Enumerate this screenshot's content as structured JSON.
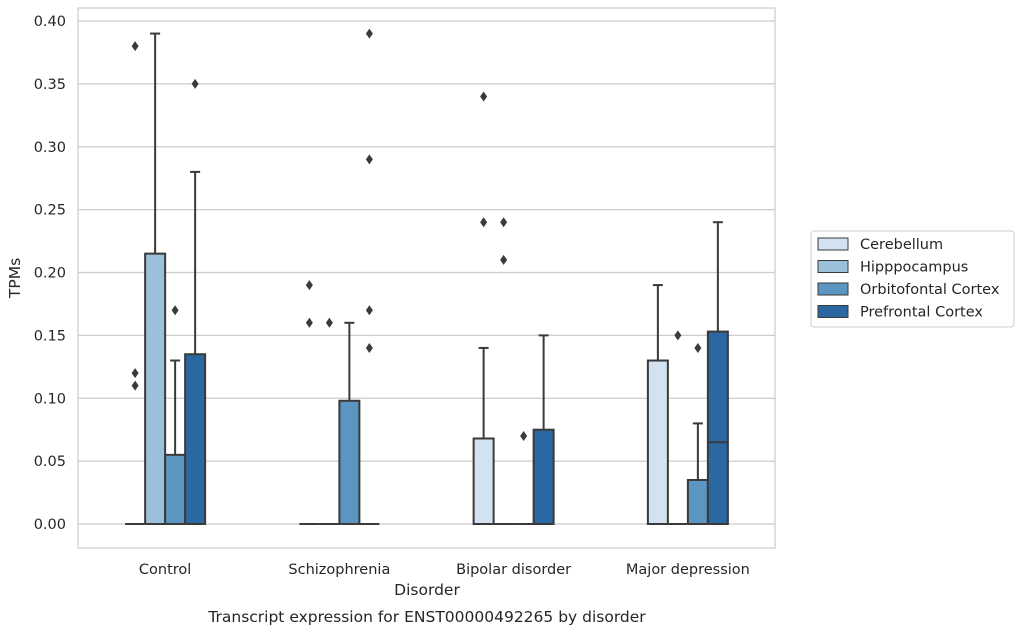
{
  "chart_data": {
    "type": "box",
    "title": "",
    "caption": "Transcript expression for ENST00000492265 by disorder",
    "xlabel": "Disorder",
    "ylabel": "TPMs",
    "ylim": [
      -0.018,
      0.41
    ],
    "yticks": [
      "0.00",
      "0.05",
      "0.10",
      "0.15",
      "0.20",
      "0.25",
      "0.30",
      "0.35",
      "0.40"
    ],
    "ytick_values": [
      0,
      0.05,
      0.1,
      0.15,
      0.2,
      0.25,
      0.3,
      0.35,
      0.4
    ],
    "grid": "horizontal",
    "legend_placement": "right",
    "categories": [
      "Control",
      "Schizophrenia",
      "Bipolar disorder",
      "Major depression"
    ],
    "series": [
      {
        "name": "Cerebellum",
        "color": "#d2e2f0",
        "boxes": [
          {
            "q1": 0,
            "median": 0,
            "q3": 0,
            "whislo": 0,
            "whishi": 0,
            "fliers": []
          },
          {
            "q1": 0,
            "median": 0,
            "q3": 0,
            "whislo": 0,
            "whishi": 0,
            "fliers": []
          },
          {
            "q1": 0,
            "median": 0,
            "q3": 0.068,
            "whislo": 0,
            "whishi": 0.14,
            "fliers": [
              0.24,
              0.34
            ]
          },
          {
            "q1": 0,
            "median": 0,
            "q3": 0.13,
            "whislo": 0,
            "whishi": 0.19,
            "fliers": []
          }
        ]
      },
      {
        "name": "Hipppocampus",
        "color": "#9bc0da",
        "boxes": [
          {
            "q1": 0,
            "median": 0,
            "q3": 0.215,
            "whislo": 0,
            "whishi": 0.39,
            "fliers": []
          },
          {
            "q1": 0,
            "median": 0,
            "q3": 0,
            "whislo": 0,
            "whishi": 0,
            "fliers": []
          },
          {
            "q1": 0,
            "median": 0,
            "q3": 0,
            "whislo": 0,
            "whishi": 0,
            "fliers": [
              0.24,
              0.21
            ]
          },
          {
            "q1": 0,
            "median": 0,
            "q3": 0,
            "whislo": 0,
            "whishi": 0,
            "fliers": [
              0.15
            ]
          }
        ]
      },
      {
        "name": "Orbitofontal Cortex",
        "color": "#5b95c2",
        "boxes": [
          {
            "q1": 0,
            "median": 0,
            "q3": 0.055,
            "whislo": 0,
            "whishi": 0.13,
            "fliers": [
              0.17
            ]
          },
          {
            "q1": 0,
            "median": 0,
            "q3": 0.098,
            "whislo": 0,
            "whishi": 0.16,
            "fliers": []
          },
          {
            "q1": 0,
            "median": 0,
            "q3": 0,
            "whislo": 0,
            "whishi": 0,
            "fliers": [
              0.07
            ]
          },
          {
            "q1": 0,
            "median": 0,
            "q3": 0.035,
            "whislo": 0,
            "whishi": 0.08,
            "fliers": [
              0.14
            ]
          }
        ]
      },
      {
        "name": "Prefrontal Cortex",
        "color": "#2b67a1",
        "boxes": [
          {
            "q1": 0,
            "median": 0,
            "q3": 0.135,
            "whislo": 0,
            "whishi": 0.28,
            "fliers": [
              0.35
            ]
          },
          {
            "q1": 0,
            "median": 0,
            "q3": 0,
            "whislo": 0,
            "whishi": 0,
            "fliers": [
              0.39,
              0.29,
              0.17,
              0.14
            ]
          },
          {
            "q1": 0,
            "median": 0,
            "q3": 0.075,
            "whislo": 0,
            "whishi": 0.15,
            "fliers": []
          },
          {
            "q1": 0,
            "median": 0.065,
            "q3": 0.153,
            "whislo": 0,
            "whishi": 0.24,
            "fliers": []
          }
        ]
      }
    ],
    "extra_fliers": [
      {
        "category": "Control",
        "series": "Cerebellum",
        "values": [
          0.38,
          0.12,
          0.11
        ]
      },
      {
        "category": "Schizophrenia",
        "series": "Cerebellum",
        "values": [
          0.19,
          0.16
        ]
      },
      {
        "category": "Schizophrenia",
        "series": "Hipppocampus",
        "values": [
          0.16
        ]
      }
    ]
  }
}
